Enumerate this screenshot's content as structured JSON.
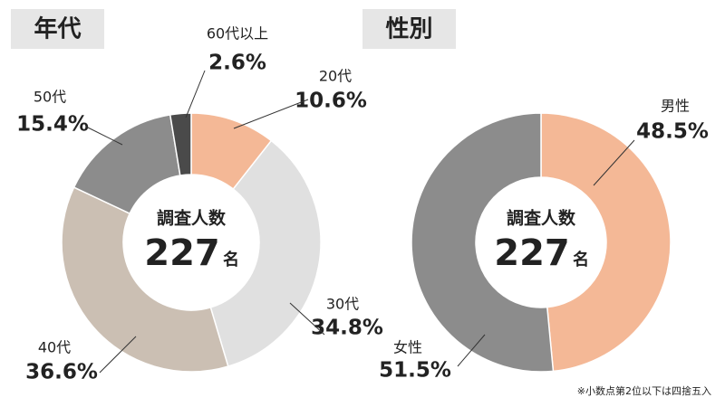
{
  "chart_data": [
    {
      "type": "donut",
      "title": "年代",
      "categories": [
        "20代",
        "30代",
        "40代",
        "50代",
        "60代以上"
      ],
      "values": [
        10.6,
        34.8,
        36.6,
        15.4,
        2.6
      ],
      "value_labels": [
        "10.6%",
        "34.8%",
        "36.6%",
        "15.4%",
        "2.6%"
      ],
      "colors": [
        "#f4b896",
        "#e0e0e0",
        "#cbbfb3",
        "#8c8c8c",
        "#4a4a4a"
      ],
      "center_label": "調査人数",
      "center_value": 227,
      "center_unit": "名"
    },
    {
      "type": "donut",
      "title": "性別",
      "categories": [
        "男性",
        "女性"
      ],
      "values": [
        48.5,
        51.5
      ],
      "value_labels": [
        "48.5%",
        "51.5%"
      ],
      "colors": [
        "#f4b896",
        "#8c8c8c"
      ],
      "center_label": "調査人数",
      "center_value": 227,
      "center_unit": "名"
    }
  ],
  "note": "※小数点第2位以下は四捨五入"
}
